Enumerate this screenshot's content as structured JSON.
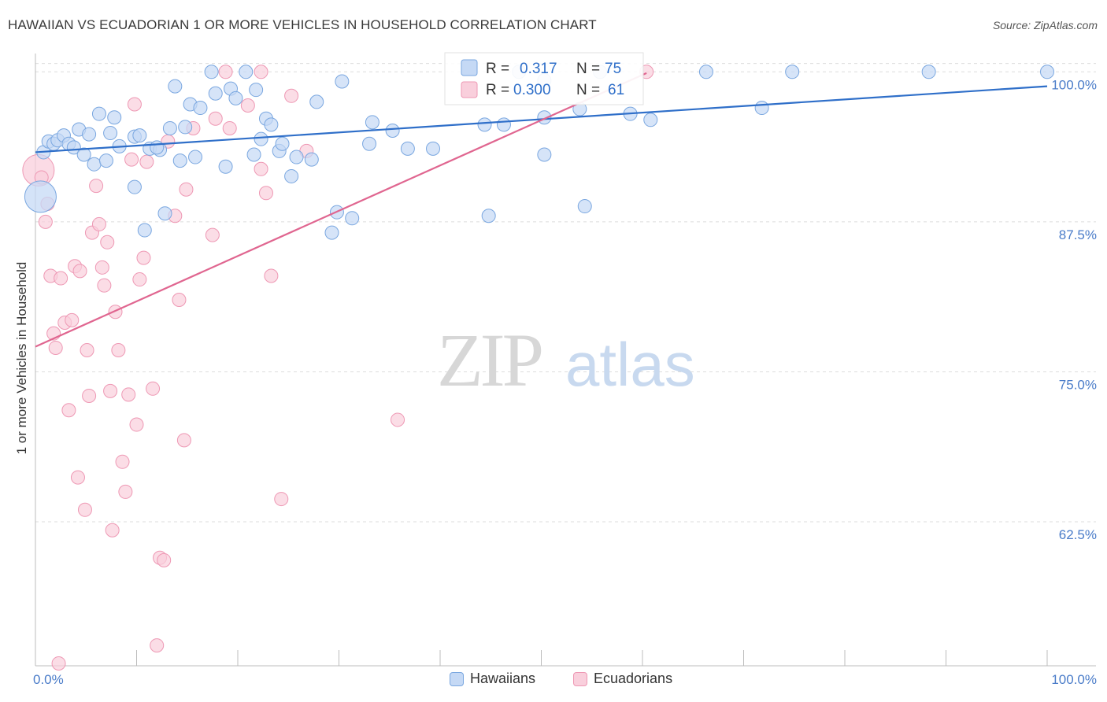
{
  "chart_data": {
    "type": "scatter",
    "title": "HAWAIIAN VS ECUADORIAN 1 OR MORE VEHICLES IN HOUSEHOLD CORRELATION CHART",
    "source": "Source: ZipAtlas.com",
    "ylabel": "1 or more Vehicles in Household",
    "xlabel": "",
    "xlim": [
      0,
      100
    ],
    "ylim": [
      50.5,
      101.2
    ],
    "x_tick_labels": [
      "0.0%",
      "100.0%"
    ],
    "y_ticks": [
      {
        "value": 62.5,
        "label": "62.5%"
      },
      {
        "value": 75.0,
        "label": "75.0%"
      },
      {
        "value": 87.5,
        "label": "87.5%"
      },
      {
        "value": 100.0,
        "label": "100.0%"
      }
    ],
    "watermark": {
      "zip": "ZIP",
      "atlas": "atlas"
    },
    "legend_stats": [
      {
        "r_label": "R =",
        "r_value": "0.317",
        "n_label": "N =",
        "n_value": "75"
      },
      {
        "r_label": "R =",
        "r_value": "0.300",
        "n_label": "N =",
        "n_value": "61"
      }
    ],
    "colors": {
      "hawaiians_fill": "#c5d9f5",
      "hawaiians_stroke": "#7aa7e0",
      "hawaiians_line": "#2f6fc9",
      "ecuadorians_fill": "#f9cfdc",
      "ecuadorians_stroke": "#ee98b4",
      "ecuadorians_line": "#e06690",
      "tick_text": "#4a7cc9",
      "grid": "#dcdcdc"
    },
    "series": [
      {
        "name": "Hawaiians",
        "trend": {
          "x": [
            0,
            100
          ],
          "y": [
            93.3,
            98.8
          ]
        },
        "points": [
          {
            "x": 0.5,
            "y": 89.6,
            "big": true
          },
          {
            "x": 0.8,
            "y": 93.3
          },
          {
            "x": 1.3,
            "y": 94.2
          },
          {
            "x": 1.8,
            "y": 94.0
          },
          {
            "x": 2.2,
            "y": 94.3
          },
          {
            "x": 2.8,
            "y": 94.7
          },
          {
            "x": 3.3,
            "y": 94.0
          },
          {
            "x": 3.8,
            "y": 93.7
          },
          {
            "x": 4.3,
            "y": 95.2
          },
          {
            "x": 4.8,
            "y": 93.1
          },
          {
            "x": 5.3,
            "y": 94.8
          },
          {
            "x": 5.8,
            "y": 92.3
          },
          {
            "x": 6.3,
            "y": 96.5
          },
          {
            "x": 7.0,
            "y": 92.6
          },
          {
            "x": 7.4,
            "y": 94.9
          },
          {
            "x": 7.8,
            "y": 96.2
          },
          {
            "x": 8.3,
            "y": 93.8
          },
          {
            "x": 9.8,
            "y": 90.4
          },
          {
            "x": 9.8,
            "y": 94.6
          },
          {
            "x": 10.3,
            "y": 94.7
          },
          {
            "x": 10.8,
            "y": 86.8
          },
          {
            "x": 11.3,
            "y": 93.6
          },
          {
            "x": 12.3,
            "y": 93.5
          },
          {
            "x": 12.0,
            "y": 93.7
          },
          {
            "x": 12.8,
            "y": 88.2
          },
          {
            "x": 13.3,
            "y": 95.3
          },
          {
            "x": 13.8,
            "y": 98.8
          },
          {
            "x": 14.3,
            "y": 92.6
          },
          {
            "x": 14.8,
            "y": 95.4
          },
          {
            "x": 15.3,
            "y": 97.3
          },
          {
            "x": 15.8,
            "y": 92.9
          },
          {
            "x": 16.3,
            "y": 97.0
          },
          {
            "x": 17.4,
            "y": 100.0
          },
          {
            "x": 17.8,
            "y": 98.2
          },
          {
            "x": 18.8,
            "y": 92.1
          },
          {
            "x": 19.3,
            "y": 98.6
          },
          {
            "x": 19.8,
            "y": 97.8
          },
          {
            "x": 20.8,
            "y": 100.0
          },
          {
            "x": 21.8,
            "y": 98.5
          },
          {
            "x": 21.6,
            "y": 93.1
          },
          {
            "x": 22.3,
            "y": 94.4
          },
          {
            "x": 22.8,
            "y": 96.1
          },
          {
            "x": 23.3,
            "y": 95.6
          },
          {
            "x": 24.1,
            "y": 93.4
          },
          {
            "x": 24.4,
            "y": 94.0
          },
          {
            "x": 25.3,
            "y": 91.3
          },
          {
            "x": 25.8,
            "y": 92.9
          },
          {
            "x": 27.3,
            "y": 92.7
          },
          {
            "x": 27.8,
            "y": 97.5
          },
          {
            "x": 29.8,
            "y": 88.3
          },
          {
            "x": 29.3,
            "y": 86.6
          },
          {
            "x": 30.3,
            "y": 99.2
          },
          {
            "x": 31.3,
            "y": 87.8
          },
          {
            "x": 33.0,
            "y": 94.0
          },
          {
            "x": 33.3,
            "y": 95.8
          },
          {
            "x": 35.3,
            "y": 95.1
          },
          {
            "x": 36.8,
            "y": 93.6
          },
          {
            "x": 39.3,
            "y": 93.6
          },
          {
            "x": 44.4,
            "y": 95.6
          },
          {
            "x": 44.8,
            "y": 88.0
          },
          {
            "x": 46.3,
            "y": 95.6
          },
          {
            "x": 47.8,
            "y": 100.0
          },
          {
            "x": 50.3,
            "y": 99.3
          },
          {
            "x": 50.3,
            "y": 96.2
          },
          {
            "x": 50.3,
            "y": 93.1
          },
          {
            "x": 53.8,
            "y": 96.9
          },
          {
            "x": 54.3,
            "y": 88.8
          },
          {
            "x": 58.8,
            "y": 96.5
          },
          {
            "x": 60.8,
            "y": 96.0
          },
          {
            "x": 66.3,
            "y": 100.0
          },
          {
            "x": 71.8,
            "y": 97.0
          },
          {
            "x": 88.3,
            "y": 100.0
          },
          {
            "x": 100.0,
            "y": 100.0
          },
          {
            "x": 55.8,
            "y": 100.0
          },
          {
            "x": 74.8,
            "y": 100.0
          }
        ]
      },
      {
        "name": "Ecuadorians",
        "trend": {
          "x": [
            0,
            60.4
          ],
          "y": [
            77.1,
            99.9
          ]
        },
        "points": [
          {
            "x": 0.3,
            "y": 91.8,
            "big": true
          },
          {
            "x": 0.6,
            "y": 91.2
          },
          {
            "x": 1.0,
            "y": 87.5
          },
          {
            "x": 1.2,
            "y": 89.0
          },
          {
            "x": 1.5,
            "y": 83.0
          },
          {
            "x": 1.8,
            "y": 78.2
          },
          {
            "x": 2.0,
            "y": 77.0
          },
          {
            "x": 2.5,
            "y": 82.8
          },
          {
            "x": 2.9,
            "y": 79.1
          },
          {
            "x": 3.3,
            "y": 71.8
          },
          {
            "x": 3.6,
            "y": 79.3
          },
          {
            "x": 3.9,
            "y": 83.8
          },
          {
            "x": 4.2,
            "y": 66.2
          },
          {
            "x": 4.4,
            "y": 83.4
          },
          {
            "x": 4.9,
            "y": 63.5
          },
          {
            "x": 5.1,
            "y": 76.8
          },
          {
            "x": 5.3,
            "y": 73.0
          },
          {
            "x": 5.6,
            "y": 86.6
          },
          {
            "x": 6.0,
            "y": 90.5
          },
          {
            "x": 6.3,
            "y": 87.3
          },
          {
            "x": 6.6,
            "y": 83.7
          },
          {
            "x": 6.8,
            "y": 82.2
          },
          {
            "x": 7.1,
            "y": 85.8
          },
          {
            "x": 7.4,
            "y": 73.4
          },
          {
            "x": 7.6,
            "y": 61.8
          },
          {
            "x": 7.9,
            "y": 80.0
          },
          {
            "x": 8.2,
            "y": 76.8
          },
          {
            "x": 8.6,
            "y": 67.5
          },
          {
            "x": 8.9,
            "y": 65.0
          },
          {
            "x": 9.2,
            "y": 73.1
          },
          {
            "x": 9.5,
            "y": 92.7
          },
          {
            "x": 9.8,
            "y": 97.3
          },
          {
            "x": 10.0,
            "y": 70.6
          },
          {
            "x": 10.3,
            "y": 82.7
          },
          {
            "x": 10.7,
            "y": 84.5
          },
          {
            "x": 11.0,
            "y": 92.5
          },
          {
            "x": 11.6,
            "y": 73.6
          },
          {
            "x": 12.0,
            "y": 52.2
          },
          {
            "x": 12.3,
            "y": 59.5
          },
          {
            "x": 12.7,
            "y": 59.3
          },
          {
            "x": 13.1,
            "y": 94.2
          },
          {
            "x": 13.8,
            "y": 88.0
          },
          {
            "x": 14.2,
            "y": 81.0
          },
          {
            "x": 14.7,
            "y": 69.3
          },
          {
            "x": 14.9,
            "y": 90.2
          },
          {
            "x": 15.6,
            "y": 95.3
          },
          {
            "x": 17.5,
            "y": 86.4
          },
          {
            "x": 17.8,
            "y": 96.1
          },
          {
            "x": 18.8,
            "y": 100.0
          },
          {
            "x": 19.2,
            "y": 95.3
          },
          {
            "x": 21.0,
            "y": 97.2
          },
          {
            "x": 22.3,
            "y": 100.0
          },
          {
            "x": 22.3,
            "y": 91.9
          },
          {
            "x": 22.8,
            "y": 89.9
          },
          {
            "x": 23.3,
            "y": 83.0
          },
          {
            "x": 24.3,
            "y": 64.4
          },
          {
            "x": 25.3,
            "y": 98.0
          },
          {
            "x": 26.8,
            "y": 93.4
          },
          {
            "x": 35.8,
            "y": 71.0
          },
          {
            "x": 60.4,
            "y": 100.0
          },
          {
            "x": 2.3,
            "y": 50.7
          }
        ]
      }
    ]
  }
}
